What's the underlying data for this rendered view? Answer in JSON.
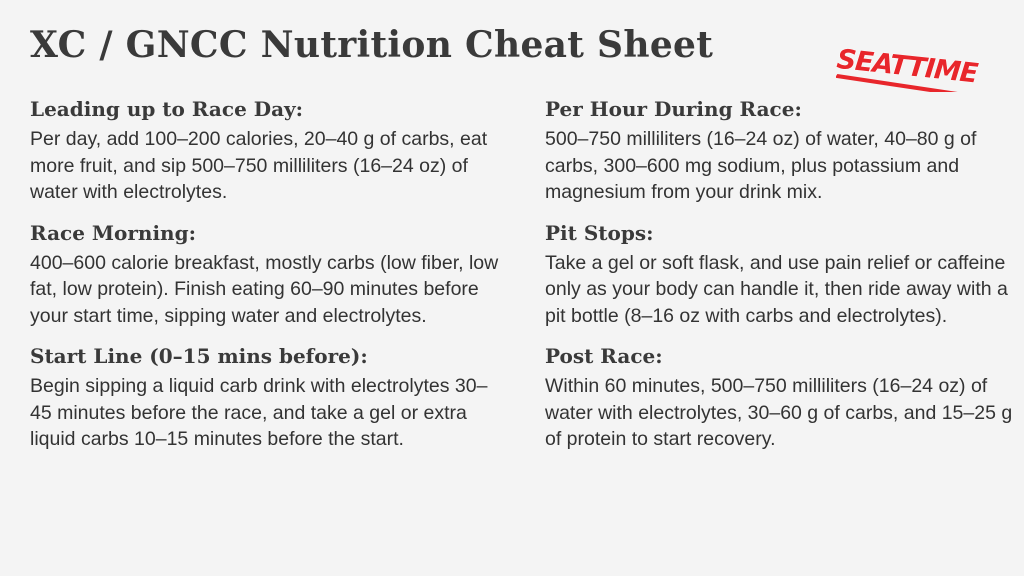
{
  "title": "XC / GNCC Nutrition Cheat Sheet",
  "logo": {
    "text": "SEATTIME",
    "color": "#e8262b"
  },
  "left_column": [
    {
      "heading": "Leading up to Race Day:",
      "body": "Per day, add 100–200 calories, 20–40 g of carbs, eat more fruit, and sip 500–750 milliliters (16–24 oz) of water with electrolytes."
    },
    {
      "heading": "Race Morning:",
      "body": "400–600 calorie breakfast, mostly carbs (low fiber, low fat, low protein). Finish eating 60–90 minutes before your start time, sipping water and electrolytes."
    },
    {
      "heading": "Start Line (0–15 mins before):",
      "body": "Begin sipping a liquid carb drink with electrolytes 30–45 minutes before the race, and take a gel or extra liquid carbs 10–15 minutes before the start."
    }
  ],
  "right_column": [
    {
      "heading": "Per Hour During Race:",
      "body": "500–750 milliliters (16–24 oz) of water, 40–80 g of carbs, 300–600 mg sodium, plus potassium and magnesium from your drink mix."
    },
    {
      "heading": "Pit Stops:",
      "body": "Take a gel or soft flask, and use pain relief or caffeine only as your body can handle it, then ride away with a pit bottle (8–16 oz with carbs and electrolytes)."
    },
    {
      "heading": "Post Race:",
      "body": "Within 60 minutes, 500–750 milliliters (16–24 oz) of water with electrolytes, 30–60 g of carbs, and 15–25 g of protein to start recovery."
    }
  ]
}
